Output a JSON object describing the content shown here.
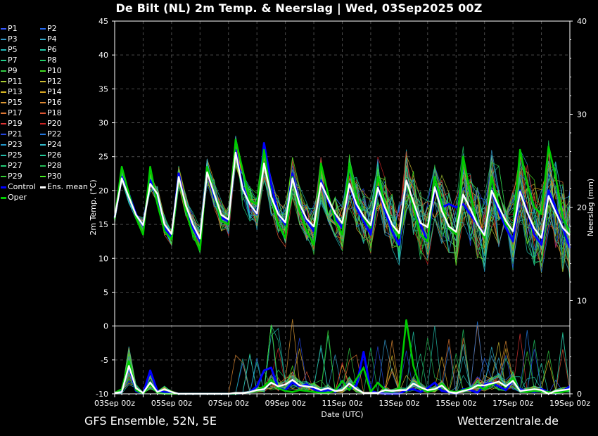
{
  "title": "De Bilt  (NL)  2m Temp. & Neerslag | Wed, 03Sep2025 00Z",
  "footer": {
    "left": "GFS Ensemble, 52N, 5E",
    "right": "Wetterzentrale.de"
  },
  "colors": {
    "background": "#000000",
    "grid": "#4a4a4a",
    "zero_line": "#ffffff",
    "control": "#0000ff",
    "ens_mean": "#ffffff",
    "oper": "#00cc00"
  },
  "legend": [
    {
      "label": "P1",
      "color": "#3355ff"
    },
    {
      "label": "P2",
      "color": "#2266ee"
    },
    {
      "label": "P3",
      "color": "#3399cc"
    },
    {
      "label": "P4",
      "color": "#33aacc"
    },
    {
      "label": "P5",
      "color": "#22bbbb"
    },
    {
      "label": "P6",
      "color": "#22ccaa"
    },
    {
      "label": "P7",
      "color": "#22cc88"
    },
    {
      "label": "P8",
      "color": "#22cc66"
    },
    {
      "label": "P9",
      "color": "#33cc44"
    },
    {
      "label": "P10",
      "color": "#44dd22"
    },
    {
      "label": "P11",
      "color": "#aacc33"
    },
    {
      "label": "P12",
      "color": "#ccbb33"
    },
    {
      "label": "P13",
      "color": "#ddbb22"
    },
    {
      "label": "P14",
      "color": "#ddaa22"
    },
    {
      "label": "P15",
      "color": "#dd9933"
    },
    {
      "label": "P16",
      "color": "#dd8833"
    },
    {
      "label": "P17",
      "color": "#dd7733"
    },
    {
      "label": "P18",
      "color": "#dd5533"
    },
    {
      "label": "P19",
      "color": "#dd3333"
    },
    {
      "label": "P20",
      "color": "#cc2222"
    },
    {
      "label": "P21",
      "color": "#2244dd"
    },
    {
      "label": "P22",
      "color": "#2277dd"
    },
    {
      "label": "P23",
      "color": "#2299cc"
    },
    {
      "label": "P24",
      "color": "#33bbcc"
    },
    {
      "label": "P25",
      "color": "#22bbaa"
    },
    {
      "label": "P26",
      "color": "#22cc99"
    },
    {
      "label": "P27",
      "color": "#22cc77"
    },
    {
      "label": "P28",
      "color": "#22bb55"
    },
    {
      "label": "P29",
      "color": "#33cc33"
    },
    {
      "label": "P30",
      "color": "#44ee22"
    },
    {
      "label": "Control",
      "color": "#0000ff"
    },
    {
      "label": "Ens. mean",
      "color": "#ffffff"
    },
    {
      "label": "Oper",
      "color": "#00cc00"
    }
  ],
  "chart_data": {
    "type": "line",
    "xlabel": "Date (UTC)",
    "ylabel_left": "2m Temp. (°C)",
    "ylabel_right": "Neerslag (mm)",
    "ylim_left": [
      -10,
      45
    ],
    "ylim_right": [
      0,
      40
    ],
    "yticks_left": [
      -10,
      -5,
      0,
      5,
      10,
      15,
      20,
      25,
      30,
      35,
      40,
      45
    ],
    "yticks_right": [
      0,
      10,
      20,
      30,
      40
    ],
    "grid": true,
    "x_unit": "hours since 03Sep 00z (6-hourly)",
    "xlim": [
      0,
      384
    ],
    "xticks": [
      {
        "h": 0,
        "label": "03Sep 00z"
      },
      {
        "h": 48,
        "label": "05Sep 00z"
      },
      {
        "h": 96,
        "label": "07Sep 00z"
      },
      {
        "h": 144,
        "label": "09Sep 00z"
      },
      {
        "h": 192,
        "label": "11Sep 00z"
      },
      {
        "h": 240,
        "label": "13Sep 00z"
      },
      {
        "h": 288,
        "label": "15Sep 00z"
      },
      {
        "h": 336,
        "label": "17Sep 00z"
      },
      {
        "h": 384,
        "label": "19Sep 00z"
      }
    ],
    "series": [
      {
        "name": "Ens. mean",
        "kind": "temperature",
        "values": [
          16.0,
          21.8,
          19.0,
          16.4,
          14.9,
          21.0,
          19.5,
          15.0,
          13.6,
          22.0,
          17.8,
          15.0,
          12.9,
          22.7,
          19.5,
          16.4,
          15.7,
          25.6,
          20.2,
          18.0,
          16.6,
          24.0,
          19.1,
          16.5,
          15.3,
          21.8,
          18.0,
          15.8,
          14.7,
          21.1,
          18.8,
          16.6,
          15.2,
          21.0,
          18.0,
          16.2,
          14.9,
          20.4,
          17.5,
          15.0,
          13.7,
          21.5,
          18.3,
          15.2,
          14.6,
          20.5,
          17.0,
          14.7,
          13.9,
          19.4,
          17.3,
          15.0,
          13.4,
          20.0,
          17.6,
          15.5,
          14.0,
          19.8,
          16.8,
          14.4,
          13.0,
          19.2,
          16.8,
          14.5,
          13.4
        ]
      },
      {
        "name": "Control",
        "kind": "temperature",
        "values": [
          16.0,
          22.0,
          19.5,
          16.5,
          14.8,
          21.5,
          19.0,
          14.5,
          13.0,
          22.5,
          17.5,
          14.5,
          12.5,
          23.0,
          19.0,
          16.0,
          15.5,
          26.0,
          20.5,
          18.0,
          16.5,
          27.0,
          21.0,
          16.5,
          15.0,
          22.5,
          18.0,
          15.5,
          14.0,
          21.5,
          18.5,
          16.0,
          14.5,
          21.0,
          17.5,
          15.5,
          13.5,
          20.5,
          17.0,
          14.0,
          12.0,
          21.5,
          18.0,
          15.0,
          12.5,
          20.5,
          17.5,
          18.0,
          17.5,
          18.0,
          16.5,
          15.0,
          13.5,
          20.0,
          17.0,
          14.5,
          12.5,
          20.0,
          17.0,
          13.5,
          12.0,
          20.0,
          17.5,
          14.5,
          11.5
        ]
      },
      {
        "name": "Oper",
        "kind": "temperature",
        "values": [
          15.8,
          23.5,
          19.5,
          16.0,
          13.5,
          23.5,
          18.0,
          14.0,
          12.8,
          22.0,
          17.0,
          13.5,
          11.2,
          23.5,
          19.5,
          15.5,
          15.0,
          27.5,
          23.0,
          18.5,
          18.0,
          26.0,
          19.0,
          15.0,
          13.0,
          22.0,
          17.0,
          14.0,
          12.0,
          24.0,
          19.5,
          15.5,
          13.5,
          24.0,
          19.0,
          16.0,
          14.5,
          22.0,
          18.0,
          15.0,
          13.0,
          21.5,
          17.5,
          13.5,
          12.5,
          22.0,
          18.0,
          14.5,
          13.5,
          25.0,
          19.5,
          15.0,
          13.0,
          22.0,
          18.0,
          15.0,
          14.0,
          26.0,
          21.0,
          17.5,
          16.5,
          26.5,
          22.0,
          16.0,
          13.8
        ]
      },
      {
        "name": "Ens. mean",
        "kind": "precipitation",
        "values": [
          0.1,
          0.2,
          3.0,
          0.6,
          0.1,
          1.2,
          0.2,
          0.5,
          0.2,
          0.0,
          0.0,
          0.0,
          0.0,
          0.0,
          0.0,
          0.0,
          0.0,
          0.1,
          0.1,
          0.2,
          0.4,
          0.5,
          1.2,
          0.8,
          1.0,
          1.5,
          0.9,
          0.8,
          0.7,
          0.4,
          0.6,
          0.3,
          0.4,
          1.1,
          0.5,
          0.1,
          0.1,
          0.1,
          0.4,
          0.3,
          0.4,
          0.4,
          1.1,
          0.7,
          0.4,
          0.5,
          0.9,
          0.2,
          0.1,
          0.3,
          0.5,
          0.9,
          0.9,
          1.1,
          1.3,
          0.8,
          1.4,
          0.3,
          0.4,
          0.5,
          0.4,
          0.0,
          0.3,
          0.4,
          0.5
        ]
      },
      {
        "name": "Control",
        "kind": "precipitation",
        "values": [
          0.1,
          0.3,
          3.0,
          0.3,
          0.0,
          2.5,
          0.3,
          0.2,
          0.1,
          0.0,
          0.0,
          0.0,
          0.0,
          0.0,
          0.0,
          0.0,
          0.0,
          0.0,
          0.1,
          0.2,
          0.8,
          2.5,
          2.8,
          0.6,
          0.4,
          1.2,
          0.8,
          1.0,
          0.5,
          0.2,
          0.4,
          0.2,
          1.4,
          0.5,
          0.9,
          4.5,
          0.3,
          0.1,
          0.0,
          0.0,
          0.0,
          0.4,
          0.5,
          0.2,
          0.6,
          1.2,
          0.3,
          0.2,
          0.0,
          0.5,
          0.4,
          0.1,
          1.0,
          1.2,
          0.8,
          0.4,
          1.5,
          0.5,
          0.3,
          0.2,
          0.5,
          0.2,
          0.0,
          0.3,
          0.8
        ]
      },
      {
        "name": "Oper",
        "kind": "precipitation",
        "values": [
          0.1,
          0.5,
          3.5,
          0.4,
          0.0,
          1.0,
          0.1,
          0.0,
          0.0,
          0.0,
          0.0,
          0.0,
          0.0,
          0.0,
          0.0,
          0.0,
          0.0,
          0.0,
          0.1,
          0.2,
          0.4,
          0.8,
          1.5,
          0.6,
          0.3,
          0.2,
          0.4,
          0.3,
          0.2,
          0.1,
          0.1,
          0.3,
          1.4,
          0.4,
          1.6,
          2.8,
          0.2,
          1.2,
          0.4,
          0.2,
          0.6,
          7.9,
          3.0,
          0.6,
          0.2,
          0.4,
          1.1,
          0.3,
          0.2,
          0.4,
          0.6,
          0.8,
          0.5,
          1.0,
          1.3,
          0.7,
          1.7,
          0.3,
          0.2,
          0.3,
          0.3,
          0.2,
          0.1,
          0.2,
          0.4
        ]
      }
    ]
  }
}
